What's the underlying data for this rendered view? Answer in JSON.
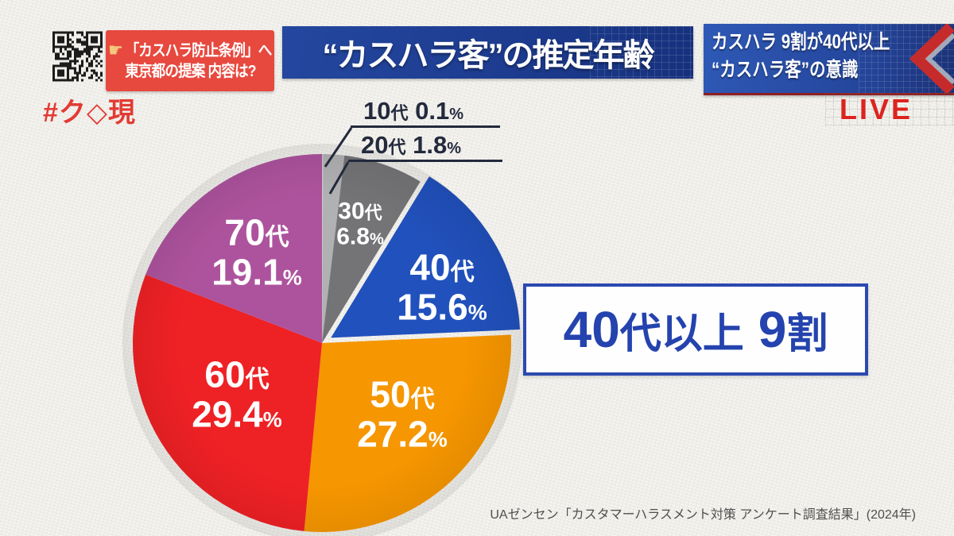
{
  "header": {
    "topic_box": {
      "icon": "pointing-finger-icon",
      "line1": "「カスハラ防止条例」へ",
      "line2": "東京都の提案 内容は?"
    },
    "hashtag": "#ク◇現",
    "title_banner": "“カスハラ客”の推定年齢",
    "side_banner": {
      "line1": "カスハラ 9割が40代以上",
      "line2": "“カスハラ客”の意識"
    },
    "live_badge": "LIVE"
  },
  "chart_data": {
    "type": "pie",
    "title": "“カスハラ客”の推定年齢",
    "unit": "%",
    "start_angle_deg": 0,
    "direction": "clockwise",
    "slices": [
      {
        "label": "10代",
        "decade": "10",
        "suffix": "代",
        "value": 0.1,
        "value_text": "0.1",
        "color": "#c6c6c8",
        "label_placement": "outside"
      },
      {
        "label": "20代",
        "decade": "20",
        "suffix": "代",
        "value": 1.8,
        "value_text": "1.8",
        "color": "#b1b1b3",
        "label_placement": "outside"
      },
      {
        "label": "30代",
        "decade": "30",
        "suffix": "代",
        "value": 6.8,
        "value_text": "6.8",
        "color": "#747477",
        "label_placement": "inside"
      },
      {
        "label": "40代",
        "decade": "40",
        "suffix": "代",
        "value": 15.6,
        "value_text": "15.6",
        "color": "#2151bd",
        "exploded": true,
        "label_placement": "inside"
      },
      {
        "label": "50代",
        "decade": "50",
        "suffix": "代",
        "value": 27.2,
        "value_text": "27.2",
        "color": "#f69600",
        "label_placement": "inside"
      },
      {
        "label": "60代",
        "decade": "60",
        "suffix": "代",
        "value": 29.4,
        "value_text": "29.4",
        "color": "#ee2125",
        "label_placement": "inside"
      },
      {
        "label": "70代",
        "decade": "70",
        "suffix": "代",
        "value": 19.1,
        "value_text": "19.1",
        "color": "#ad539d",
        "label_placement": "inside"
      }
    ],
    "callout": {
      "num1": "40",
      "mid": "代以上",
      "num2": "9",
      "tail": "割"
    },
    "source": "UAゼンセン「カスタマーハラスメント対策 アンケート調査結果」(2024年)"
  },
  "colors": {
    "topic_box_red": "#e7493f",
    "banner_blue": "#1d3c90",
    "live_red": "#dc241f",
    "callout_blue": "#2443ae",
    "outside_label_navy": "#232a3c",
    "source_gray": "#4f4f4f"
  }
}
